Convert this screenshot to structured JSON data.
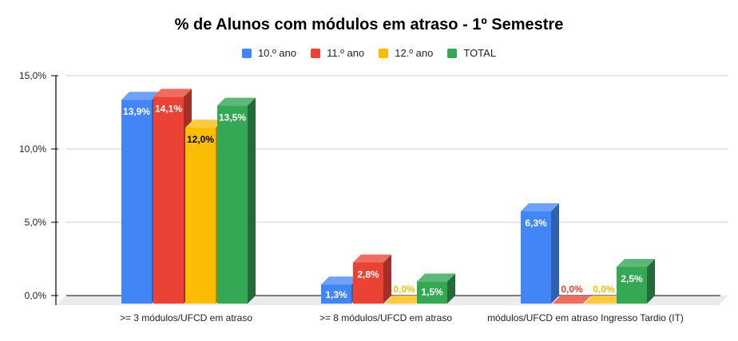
{
  "chart_data": {
    "type": "bar",
    "title": "% de Alunos com módulos em atraso - 1º Semestre",
    "xlabel": "",
    "ylabel": "",
    "ylim": [
      0,
      15
    ],
    "yticks": [
      "0,0%",
      "5,0%",
      "10,0%",
      "15,0%"
    ],
    "grid": true,
    "legend_position": "top",
    "three_d": true,
    "categories": [
      ">= 3 módulos/UFCD em atraso",
      ">= 8 módulos/UFCD em atraso",
      "módulos/UFCD em atraso Ingresso Tardio (IT)"
    ],
    "series": [
      {
        "name": "10.º ano",
        "color": "#4285f4",
        "side": "#2f5fb0",
        "top": "#6fa1f7",
        "values": [
          13.9,
          1.3,
          6.3
        ],
        "labels": [
          "13,9%",
          "1,3%",
          "6,3%"
        ],
        "label_color": "#ffffff"
      },
      {
        "name": "11.º ano",
        "color": "#ea4335",
        "side": "#a52f26",
        "top": "#ef6c60",
        "values": [
          14.1,
          2.8,
          0.0
        ],
        "labels": [
          "14,1%",
          "2,8%",
          "0,0%"
        ],
        "label_color": "#ffffff"
      },
      {
        "name": "12.º ano",
        "color": "#fbbc04",
        "side": "#b08403",
        "top": "#fccb3d",
        "values": [
          12.0,
          0.0,
          0.0
        ],
        "labels": [
          "12,0%",
          "0,0%",
          "0,0%"
        ],
        "label_color": "#000000"
      },
      {
        "name": "TOTAL",
        "color": "#34a853",
        "side": "#246b3a",
        "top": "#5cb876",
        "values": [
          13.5,
          1.5,
          2.5
        ],
        "labels": [
          "13,5%",
          "1,5%",
          "2,5%"
        ],
        "label_color": "#ffffff"
      }
    ]
  }
}
